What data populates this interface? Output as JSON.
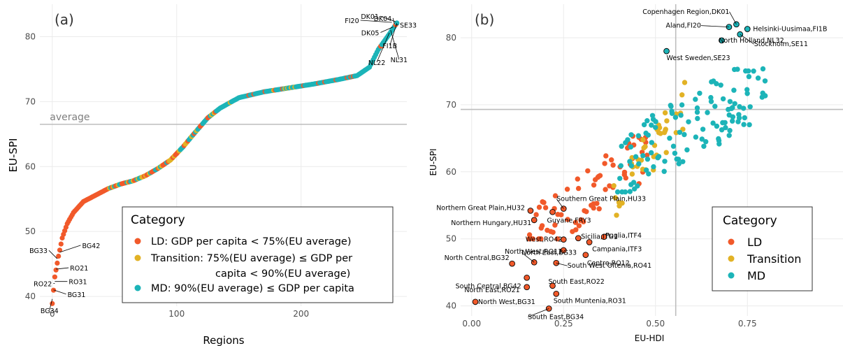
{
  "colors": {
    "LD": "#f1592a",
    "Transition": "#e2b225",
    "MD": "#1cb4b8",
    "refline": "#bdbdbd",
    "grid": "#ebebeb"
  },
  "chart_data": [
    {
      "type": "scatter",
      "panel_label": "(a)",
      "xlabel": "Regions",
      "ylabel": "EU-SPI",
      "xlim": [
        -10,
        285
      ],
      "ylim": [
        38.5,
        85
      ],
      "xticks": [
        0,
        100,
        200
      ],
      "yticks": [
        40,
        50,
        60,
        70,
        80
      ],
      "grid": true,
      "reference_line": {
        "axis": "y",
        "value": 66.5,
        "label": "average"
      },
      "curve_knots": [
        [
          0,
          38.9
        ],
        [
          2,
          43.0
        ],
        [
          5,
          46.2
        ],
        [
          8,
          49.0
        ],
        [
          12,
          51.2
        ],
        [
          17,
          52.9
        ],
        [
          25,
          54.6
        ],
        [
          35,
          55.6
        ],
        [
          45,
          56.6
        ],
        [
          55,
          57.3
        ],
        [
          65,
          57.8
        ],
        [
          75,
          58.6
        ],
        [
          85,
          59.7
        ],
        [
          95,
          61.0
        ],
        [
          105,
          63.0
        ],
        [
          115,
          65.3
        ],
        [
          125,
          67.5
        ],
        [
          135,
          69.0
        ],
        [
          150,
          70.6
        ],
        [
          170,
          71.5
        ],
        [
          190,
          72.1
        ],
        [
          210,
          72.7
        ],
        [
          230,
          73.4
        ],
        [
          245,
          74.0
        ],
        [
          255,
          75.3
        ],
        [
          262,
          78.0
        ],
        [
          268,
          79.6
        ],
        [
          272,
          80.7
        ],
        [
          277,
          82.1
        ]
      ],
      "point_categories_by_range": [
        {
          "from": 0,
          "to": 45,
          "category": "LD"
        },
        {
          "from": 46,
          "to": 80,
          "category": "mixed"
        },
        {
          "from": 81,
          "to": 125,
          "category": "mixed"
        },
        {
          "from": 126,
          "to": 277,
          "category": "mostly MD"
        }
      ],
      "annotations": [
        {
          "label": "BG33",
          "x": 4,
          "y": 45.8
        },
        {
          "label": "BG42",
          "x": 6,
          "y": 46.8
        },
        {
          "label": "RO21",
          "x": 3,
          "y": 44.2
        },
        {
          "label": "RO22",
          "x": 2,
          "y": 42.0
        },
        {
          "label": "RO31",
          "x": 2,
          "y": 42.3
        },
        {
          "label": "BG31",
          "x": 1,
          "y": 41.0
        },
        {
          "label": "BG34",
          "x": 0,
          "y": 39.6
        },
        {
          "label": "FI20",
          "x": 273,
          "y": 82.2
        },
        {
          "label": "DK01",
          "x": 276,
          "y": 82.3
        },
        {
          "label": "DK04",
          "x": 275,
          "y": 82.0
        },
        {
          "label": "SE33",
          "x": 276,
          "y": 81.8
        },
        {
          "label": "DK05",
          "x": 274,
          "y": 81.5
        },
        {
          "label": "FI1B",
          "x": 277,
          "y": 82.1
        },
        {
          "label": "NL22",
          "x": 271,
          "y": 80.6
        },
        {
          "label": "NL31",
          "x": 272,
          "y": 81.0
        }
      ],
      "legend": {
        "title": "Category",
        "position": "bottom-right",
        "entries": [
          {
            "key": "LD",
            "label": "LD",
            "rest": ": GDP per capita < 75%(EU average)",
            "rest2": ""
          },
          {
            "key": "Transition",
            "label": "Transition",
            "rest": ": 75%(EU average) ≤ GDP per",
            "rest2": "capita < 90%(EU average)"
          },
          {
            "key": "MD",
            "label": "MD",
            "rest": ": 90%(EU average) ≤ GDP per capita",
            "rest2": ""
          }
        ]
      }
    },
    {
      "type": "scatter",
      "panel_label": "(b)",
      "xlabel": "EU-HDI",
      "ylabel": "EU-SPI",
      "xlim": [
        -0.03,
        1.01
      ],
      "ylim": [
        38.5,
        85
      ],
      "xticks": [
        0.0,
        0.25,
        0.5,
        0.75
      ],
      "xtick_labels": [
        "0.00",
        "0.25",
        "0.50",
        "0.75"
      ],
      "yticks": [
        40,
        50,
        60,
        70,
        80
      ],
      "grid": true,
      "reference_lines": [
        {
          "axis": "x",
          "value": 0.555
        },
        {
          "axis": "y",
          "value": 69.3
        }
      ],
      "clusters": [
        {
          "category": "LD",
          "x_range": [
            0.15,
            0.48
          ],
          "y_range": [
            50,
            66
          ],
          "n": 70
        },
        {
          "category": "Transition",
          "x_range": [
            0.38,
            0.58
          ],
          "y_range": [
            52,
            74
          ],
          "n": 40
        },
        {
          "category": "MD",
          "x_range": [
            0.38,
            0.8
          ],
          "y_range": [
            57,
            76
          ],
          "n": 120
        }
      ],
      "annotated_points": [
        {
          "label": "Copenhagen Region,DK01",
          "x": 0.72,
          "y": 82.0,
          "category": "MD"
        },
        {
          "label": "Aland,FI20",
          "x": 0.7,
          "y": 81.6,
          "category": "MD"
        },
        {
          "label": "Helsinki-Uusimaa,FI1B",
          "x": 0.75,
          "y": 81.3,
          "category": "MD"
        },
        {
          "label": "North Holland,NL32",
          "x": 0.68,
          "y": 79.6,
          "category": "MD"
        },
        {
          "label": "West Sweden,SE23",
          "x": 0.53,
          "y": 78.0,
          "category": "MD"
        },
        {
          "label": "Stockholm,SE11",
          "x": 0.73,
          "y": 80.5,
          "category": "MD"
        },
        {
          "label": "Southern Great Plain,HU33",
          "x": 0.25,
          "y": 54.5,
          "category": "LD"
        },
        {
          "label": "Northern Great Plain,HU32",
          "x": 0.16,
          "y": 54.2,
          "category": "LD"
        },
        {
          "label": "Guyane,FRY3",
          "x": 0.22,
          "y": 54.0,
          "category": "LD"
        },
        {
          "label": "Northern Hungary,HU31",
          "x": 0.17,
          "y": 52.8,
          "category": "LD"
        },
        {
          "label": "West,RO42",
          "x": 0.25,
          "y": 49.9,
          "category": "LD"
        },
        {
          "label": "Sicilia,ITG1",
          "x": 0.29,
          "y": 50.1,
          "category": "LD"
        },
        {
          "label": "Puglia,ITF4",
          "x": 0.36,
          "y": 50.3,
          "category": "LD"
        },
        {
          "label": "North West,RO11",
          "x": 0.25,
          "y": 48.3,
          "category": "LD"
        },
        {
          "label": "Campania,ITF3",
          "x": 0.32,
          "y": 49.5,
          "category": "LD"
        },
        {
          "label": "Centre,RO12",
          "x": 0.31,
          "y": 47.6,
          "category": "LD"
        },
        {
          "label": "North Central,BG32",
          "x": 0.11,
          "y": 46.3,
          "category": "LD"
        },
        {
          "label": "North East,BG33",
          "x": 0.17,
          "y": 46.5,
          "category": "LD"
        },
        {
          "label": "South West Oltenia,RO41",
          "x": 0.23,
          "y": 46.4,
          "category": "LD"
        },
        {
          "label": "South Central,BG42",
          "x": 0.15,
          "y": 44.2,
          "category": "LD"
        },
        {
          "label": "South East,RO22",
          "x": 0.22,
          "y": 43.0,
          "category": "LD"
        },
        {
          "label": "North East,RO21",
          "x": 0.15,
          "y": 42.8,
          "category": "LD"
        },
        {
          "label": "South Muntenia,RO31",
          "x": 0.23,
          "y": 41.8,
          "category": "LD"
        },
        {
          "label": "North West,BG31",
          "x": 0.01,
          "y": 40.6,
          "category": "LD"
        },
        {
          "label": "South East,BG34",
          "x": 0.21,
          "y": 39.6,
          "category": "LD"
        }
      ],
      "legend": {
        "title": "Category",
        "position": "bottom-right",
        "entries": [
          {
            "key": "LD",
            "label": "LD"
          },
          {
            "key": "Transition",
            "label": "Transition"
          },
          {
            "key": "MD",
            "label": "MD"
          }
        ]
      }
    }
  ]
}
